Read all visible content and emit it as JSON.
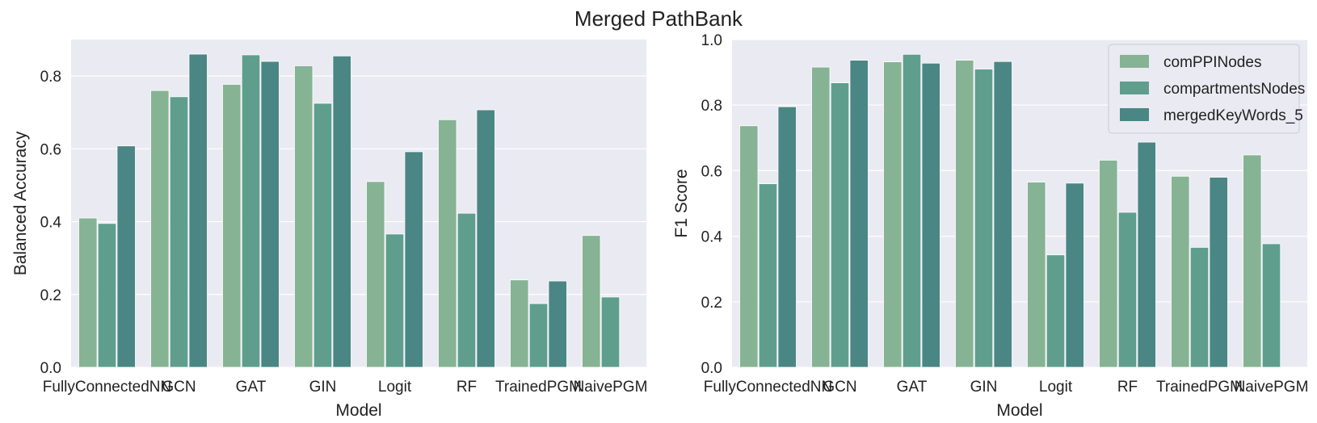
{
  "chart_data": {
    "type": "bar",
    "title": "Merged PathBank",
    "categories": [
      "FullyConnectedNN",
      "GCN",
      "GAT",
      "GIN",
      "Logit",
      "RF",
      "TrainedPGM",
      "NaivePGM"
    ],
    "series_names": [
      "comPPINodes",
      "compartmentsNodes",
      "mergedKeyWords_5"
    ],
    "colors": [
      "#86b394",
      "#5f9e8d",
      "#4a8684"
    ],
    "legend": "top-right",
    "grid": true,
    "panels": [
      {
        "xlabel": "Model",
        "ylabel": "Balanced Accuracy",
        "ylim": [
          0,
          0.9
        ],
        "yticks": [
          "0.0",
          "0.2",
          "0.4",
          "0.6",
          "0.8"
        ],
        "series": [
          {
            "name": "comPPINodes",
            "values": [
              0.41,
              0.76,
              0.777,
              0.828,
              0.51,
              0.68,
              0.24,
              0.362
            ]
          },
          {
            "name": "compartmentsNodes",
            "values": [
              0.395,
              0.743,
              0.858,
              0.725,
              0.366,
              0.423,
              0.175,
              0.193
            ]
          },
          {
            "name": "mergedKeyWords_5",
            "values": [
              0.608,
              0.86,
              0.84,
              0.855,
              0.592,
              0.707,
              0.237,
              null
            ]
          }
        ]
      },
      {
        "xlabel": "Model",
        "ylabel": "F1 Score",
        "ylim": [
          0,
          1.0
        ],
        "yticks": [
          "0.0",
          "0.2",
          "0.4",
          "0.6",
          "0.8",
          "1.0"
        ],
        "series": [
          {
            "name": "comPPINodes",
            "values": [
              0.737,
              0.916,
              0.932,
              0.937,
              0.565,
              0.632,
              0.583,
              0.648
            ]
          },
          {
            "name": "compartmentsNodes",
            "values": [
              0.56,
              0.868,
              0.955,
              0.91,
              0.343,
              0.473,
              0.366,
              0.377
            ]
          },
          {
            "name": "mergedKeyWords_5",
            "values": [
              0.795,
              0.937,
              0.928,
              0.933,
              0.562,
              0.687,
              0.58,
              null
            ]
          }
        ]
      }
    ]
  }
}
